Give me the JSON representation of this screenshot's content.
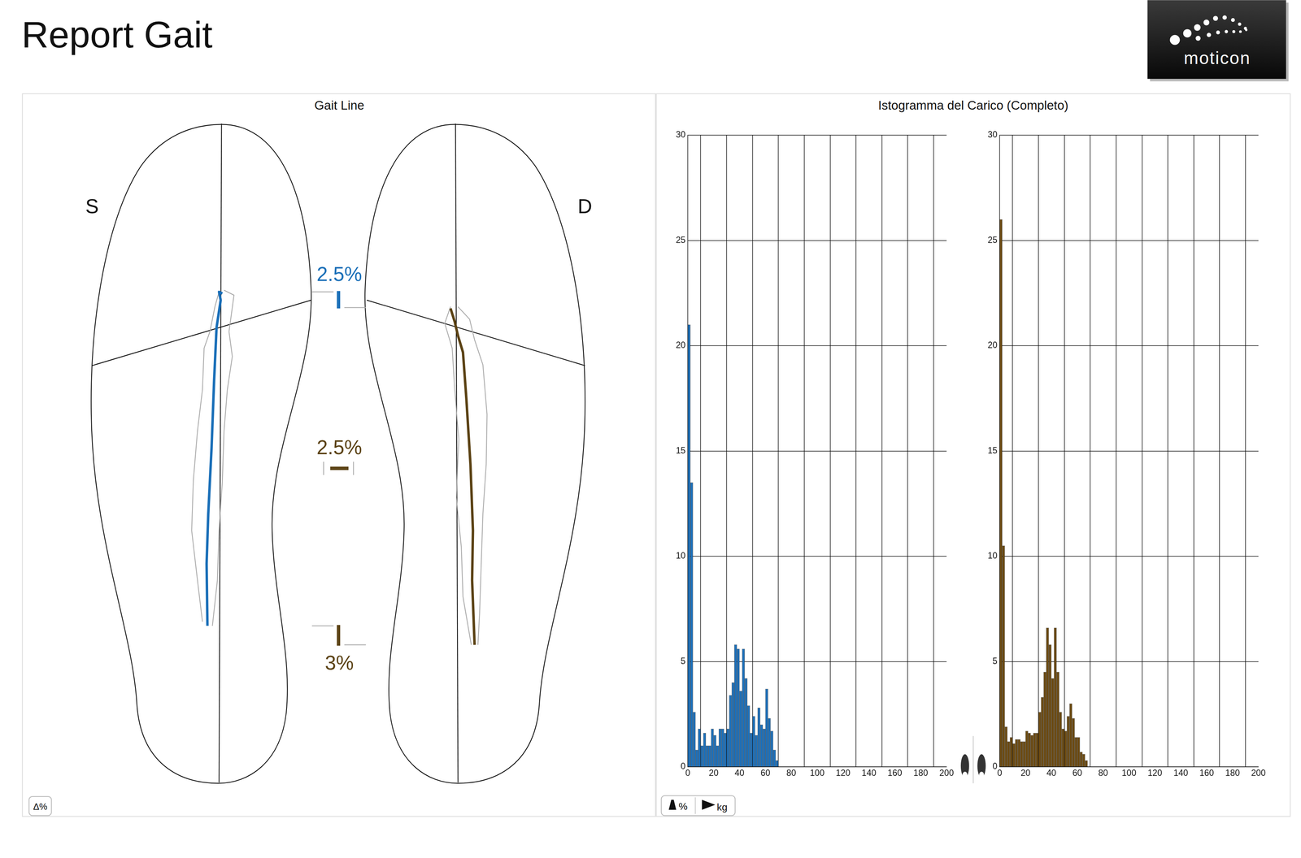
{
  "header": {
    "title": "Report Gait",
    "logo": "moticon"
  },
  "gait_line": {
    "title": "Gait Line",
    "left_label": "S",
    "right_label": "D",
    "annotations": [
      {
        "text": "2.5%",
        "color": "#1a6fb8"
      },
      {
        "text": "2.5%",
        "color": "#5b4214"
      },
      {
        "text": "3%",
        "color": "#5b4214"
      }
    ],
    "left_color": "#1a6fb8",
    "right_color": "#5b4214",
    "button": "Δ%"
  },
  "histogram_panel": {
    "title": "Istogramma del Carico (Completo)",
    "buttons": [
      "%",
      "kg"
    ]
  },
  "chart_data": [
    {
      "type": "histogram",
      "bins": [
        0,
        2,
        4,
        6,
        8,
        10,
        12,
        14,
        16,
        18,
        20,
        22,
        24,
        26,
        28,
        30,
        32,
        34,
        36,
        38,
        40,
        42,
        44,
        46,
        48,
        50,
        52,
        54,
        56,
        58,
        60,
        62,
        64,
        66,
        68,
        70
      ],
      "values": [
        21,
        13.5,
        2.6,
        0.8,
        1.8,
        1.0,
        1.6,
        1.0,
        1.0,
        1.8,
        1.5,
        1.0,
        1.8,
        1.8,
        1.6,
        1.8,
        3.4,
        4.0,
        5.8,
        5.6,
        3.6,
        5.6,
        4.2,
        2.9,
        1.6,
        2.4,
        1.5,
        2.8,
        2.0,
        1.8,
        3.7,
        2.3,
        1.7,
        0.8,
        0.3
      ],
      "color": "#1d6fb8",
      "xlim": [
        0,
        200
      ],
      "xticks": [
        0,
        20,
        40,
        60,
        80,
        100,
        120,
        140,
        160,
        180,
        200
      ],
      "ylim": [
        0,
        30
      ],
      "yticks": [
        0,
        5,
        10,
        15,
        20,
        25,
        30
      ],
      "grid": true
    },
    {
      "type": "histogram",
      "bins": [
        0,
        2,
        4,
        6,
        8,
        10,
        12,
        14,
        16,
        18,
        20,
        22,
        24,
        26,
        28,
        30,
        32,
        34,
        36,
        38,
        40,
        42,
        44,
        46,
        48,
        50,
        52,
        54,
        56,
        58,
        60,
        62,
        64,
        66,
        68
      ],
      "values": [
        26,
        10.5,
        1.9,
        1.2,
        1.4,
        1.1,
        1.3,
        1.3,
        1.2,
        1.2,
        1.7,
        1.6,
        1.5,
        1.6,
        1.6,
        2.6,
        3.3,
        4.5,
        6.6,
        5.8,
        4.2,
        6.6,
        4.5,
        2.6,
        1.8,
        1.7,
        2.4,
        3.0,
        2.3,
        1.4,
        1.4,
        0.7,
        0.6,
        0.3
      ],
      "color": "#6b4a12",
      "xlim": [
        0,
        200
      ],
      "xticks": [
        0,
        20,
        40,
        60,
        80,
        100,
        120,
        140,
        160,
        180,
        200
      ],
      "ylim": [
        0,
        30
      ],
      "yticks": [
        0,
        5,
        10,
        15,
        20,
        25,
        30
      ],
      "grid": true
    }
  ]
}
